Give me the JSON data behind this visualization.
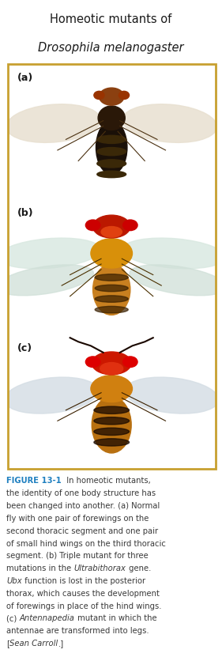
{
  "title_line1": "Homeotic mutants of",
  "title_line2": "Drosophila melanogaster",
  "title_bg_color": "#F5D88A",
  "outer_border_color": "#D4A830",
  "fig_bg_color": "#FFFFFF",
  "caption_bold_color": "#2080C0",
  "caption_color": "#3A3A3A",
  "caption_fontsize": 7.2,
  "label_color": "#1A1A1A",
  "panel_a_bg": "#C8C0B0",
  "panel_b_bg": "#C4D8E0",
  "panel_c_bg": "#C8D4DC",
  "panel_border_color": "#C8A030"
}
